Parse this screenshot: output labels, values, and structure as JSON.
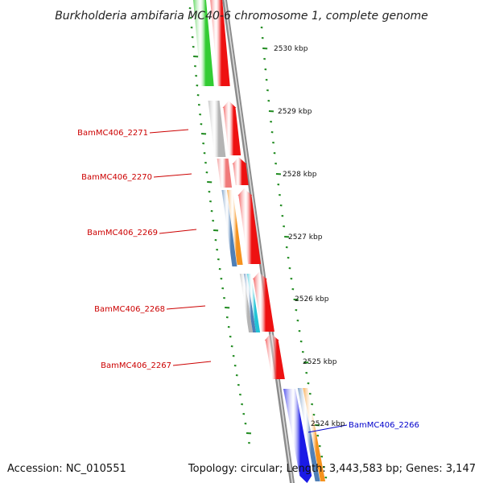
{
  "title": "Burkholderia ambifaria MC40-6 chromosome 1, complete genome",
  "accession": "Accession: NC_010551",
  "summary": "Topology: circular; Length: 3,443,583 bp; Genes: 3,147",
  "colors": {
    "backbone": "#8c8c8c",
    "ticks": "#1e8a1e",
    "red": "#ee1111",
    "green": "#33cc33",
    "gray": "#b4b4b4",
    "pink": "#f07a7a",
    "steel": "#4f7fb6",
    "orange": "#f5921e",
    "cyan": "#22c3d6",
    "blue": "#1a1ae6",
    "label_red": "#cc0000",
    "label_blue": "#0000cc"
  },
  "kbp_labels": [
    "2530 kbp",
    "2529 kbp",
    "2528 kbp",
    "2527 kbp",
    "2526 kbp",
    "2525 kbp",
    "2524 kbp"
  ],
  "gene_labels": [
    {
      "name": "BamMC406_2271",
      "strand": "reverse"
    },
    {
      "name": "BamMC406_2270",
      "strand": "reverse"
    },
    {
      "name": "BamMC406_2269",
      "strand": "reverse"
    },
    {
      "name": "BamMC406_2268",
      "strand": "reverse"
    },
    {
      "name": "BamMC406_2267",
      "strand": "reverse"
    },
    {
      "name": "BamMC406_2266",
      "strand": "forward"
    }
  ]
}
